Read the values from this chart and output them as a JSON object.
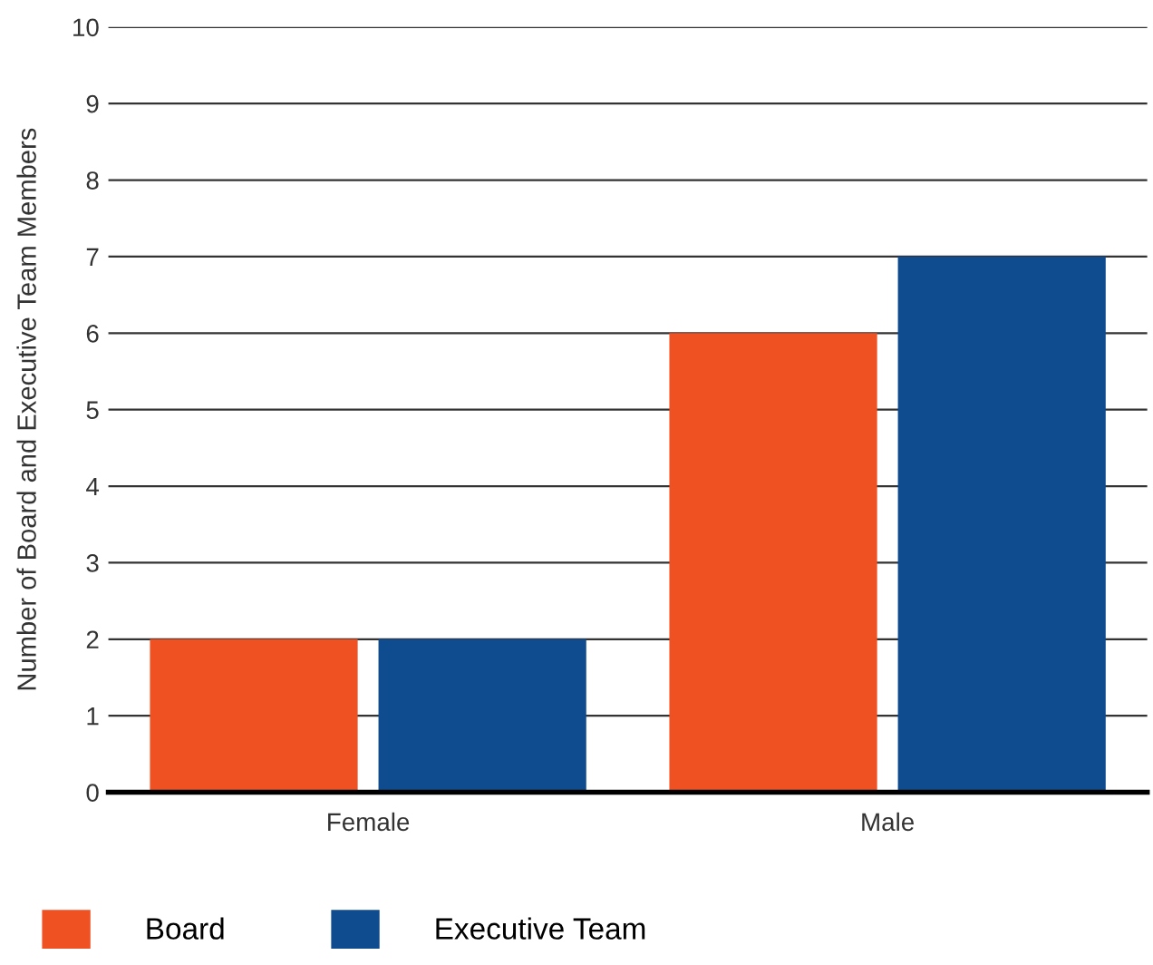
{
  "chart_data": {
    "type": "bar",
    "ylabel": "Number of Board and Executive Team Members",
    "categories": [
      "Female",
      "Male"
    ],
    "series": [
      {
        "name": "Board",
        "color": "#f05123",
        "values": [
          2,
          6
        ]
      },
      {
        "name": "Executive Team",
        "color": "#0e4c8f",
        "values": [
          2,
          7
        ]
      }
    ],
    "ylim": [
      0,
      10
    ],
    "yticks": [
      0,
      1,
      2,
      3,
      4,
      5,
      6,
      7,
      8,
      9,
      10
    ],
    "grid": "y",
    "legend": "bottom"
  }
}
